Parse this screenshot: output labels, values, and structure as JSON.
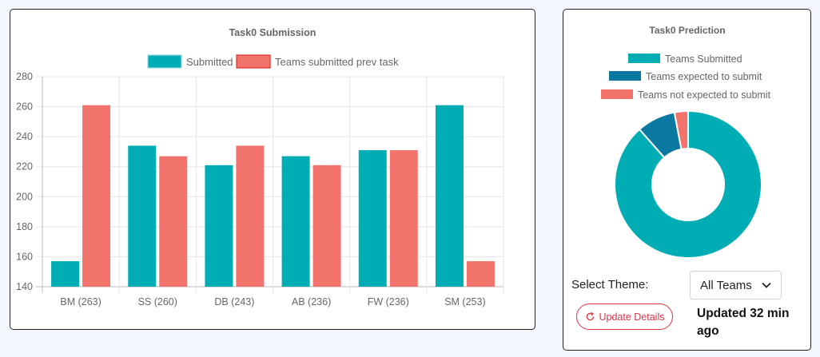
{
  "submission_chart": {
    "title": "Task0 Submission",
    "legend": [
      "Submitted",
      "Teams submitted prev task"
    ]
  },
  "prediction_chart": {
    "title": "Task0 Prediction",
    "legend": [
      "Teams Submitted",
      "Teams expected to submit",
      "Teams not expected to submit"
    ]
  },
  "controls": {
    "select_label": "Select Theme:",
    "theme_value": "All Teams",
    "update_button": "Update Details",
    "updated_text": "Updated 32 min ago"
  },
  "chart_data": [
    {
      "type": "bar",
      "title": "Task0 Submission",
      "categories": [
        "BM (263)",
        "SS (260)",
        "DB (243)",
        "AB (236)",
        "FW (236)",
        "SM (253)"
      ],
      "series": [
        {
          "name": "Submitted",
          "color": "#00adb5",
          "values": [
            157,
            234,
            221,
            227,
            231,
            261
          ]
        },
        {
          "name": "Teams submitted prev task",
          "color": "#f1736b",
          "values": [
            261,
            227,
            234,
            221,
            231,
            157
          ]
        }
      ],
      "ylim": [
        140,
        280
      ],
      "yticks": [
        140,
        160,
        180,
        200,
        220,
        240,
        260,
        280
      ],
      "grid": true,
      "legend_position": "top"
    },
    {
      "type": "pie",
      "title": "Task0 Prediction",
      "labels": [
        "Teams Submitted",
        "Teams expected to submit",
        "Teams not expected to submit"
      ],
      "values": [
        88.5,
        8.5,
        3
      ],
      "colors": [
        "#00adb5",
        "#0a78a1",
        "#f1736b"
      ],
      "donut": true,
      "legend_position": "top"
    }
  ]
}
